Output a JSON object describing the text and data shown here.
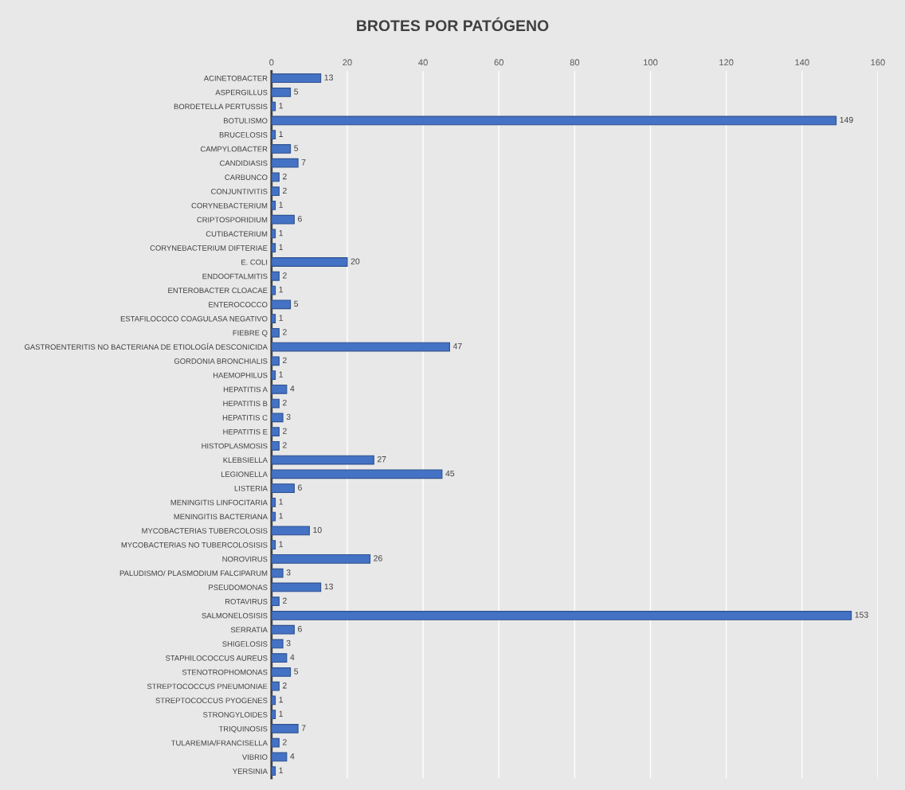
{
  "chart_data": {
    "type": "bar",
    "title": "BROTES POR PATÓGENO",
    "orientation": "horizontal",
    "categories": [
      "ACINETOBACTER",
      "ASPERGILLUS",
      "BORDETELLA PERTUSSIS",
      "BOTULISMO",
      "BRUCELOSIS",
      "CAMPYLOBACTER",
      "CANDIDIASIS",
      "CARBUNCO",
      "CONJUNTIVITIS",
      "CORYNEBACTERIUM",
      "CRIPTOSPORIDIUM",
      "CUTIBACTERIUM",
      "CORYNEBACTERIUM DIFTERIAE",
      "E. COLI",
      "ENDOOFTALMITIS",
      "ENTEROBACTER CLOACAE",
      "ENTEROCOCCO",
      "ESTAFILOCOCO COAGULASA NEGATIVO",
      "FIEBRE Q",
      "GASTROENTERITIS NO BACTERIANA DE ETIOLOGÍA DESCONICIDA",
      "GORDONIA BRONCHIALIS",
      "HAEMOPHILUS",
      "HEPATITIS A",
      "HEPATITIS B",
      "HEPATITIS C",
      "HEPATITIS E",
      "HISTOPLASMOSIS",
      "KLEBSIELLA",
      "LEGIONELLA",
      "LISTERIA",
      "MENINGITIS LINFOCITARIA",
      "MENINGITIS BACTERIANA",
      "MYCOBACTERIAS TUBERCOLOSIS",
      "MYCOBACTERIAS NO TUBERCOLOSISIS",
      "NOROVIRUS",
      "PALUDISMO/ PLASMODIUM FALCIPARUM",
      "PSEUDOMONAS",
      "ROTAVIRUS",
      "SALMONELOSISIS",
      "SERRATIA",
      "SHIGELOSIS",
      "STAPHILOCOCCUS AUREUS",
      "STENOTROPHOMONAS",
      "STREPTOCOCCUS PNEUMONIAE",
      "STREPTOCOCCUS PYOGENES",
      "STRONGYLOIDES",
      "TRIQUINOSIS",
      "TULAREMIA/FRANCISELLA",
      "VIBRIO",
      "YERSINIA"
    ],
    "values": [
      13,
      5,
      1,
      149,
      1,
      5,
      7,
      2,
      2,
      1,
      6,
      1,
      1,
      20,
      2,
      1,
      5,
      1,
      2,
      47,
      2,
      1,
      4,
      2,
      3,
      2,
      2,
      27,
      45,
      6,
      1,
      1,
      10,
      1,
      26,
      3,
      13,
      2,
      153,
      6,
      3,
      4,
      5,
      2,
      1,
      1,
      7,
      2,
      4,
      1
    ],
    "color": "#4472c4",
    "xlim": [
      0,
      160
    ],
    "xticks": [
      0,
      20,
      40,
      60,
      80,
      100,
      120,
      140,
      160
    ],
    "grid": "x",
    "data_labels": true
  }
}
